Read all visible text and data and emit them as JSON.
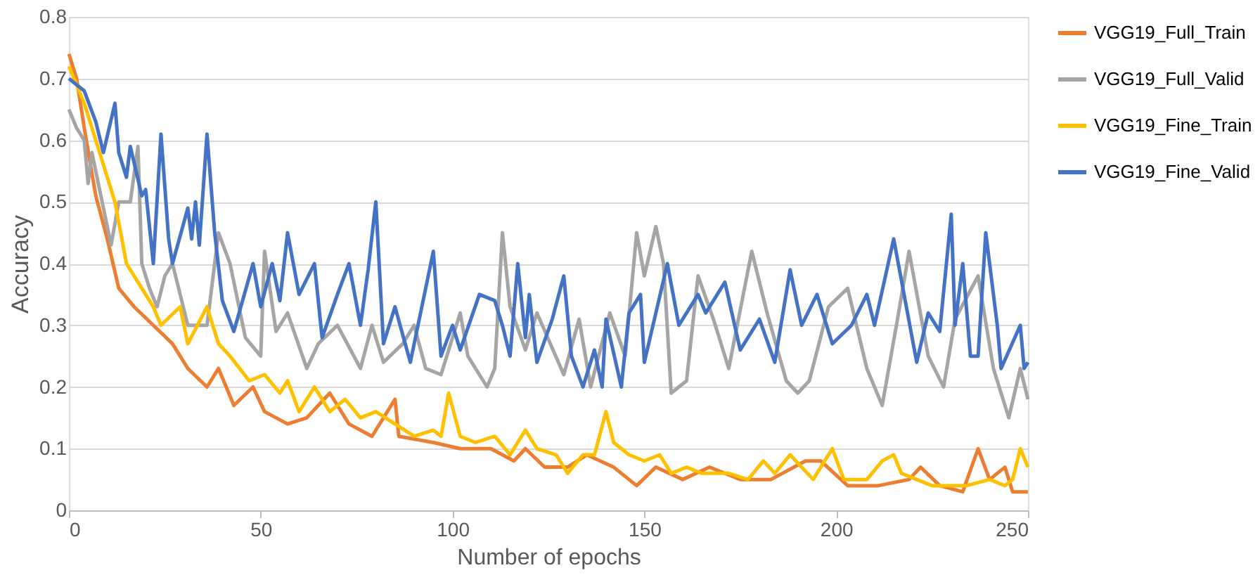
{
  "chart_data": {
    "type": "line",
    "xlabel": "Number of epochs",
    "ylabel": "Accuracy",
    "xlim": [
      0,
      250
    ],
    "xticks": [
      0,
      50,
      100,
      150,
      200,
      250
    ],
    "ylim": [
      0,
      0.8
    ],
    "yticks": [
      0,
      0.1,
      0.2,
      0.3,
      0.4,
      0.5,
      0.6,
      0.7,
      0.8
    ],
    "grid": "y",
    "legend": "right",
    "marker": "none",
    "line_style": "solid",
    "series": [
      {
        "name": "VGG19_Full_Train",
        "color": "#ed7d31",
        "x": [
          0,
          2,
          4,
          7,
          10,
          13,
          17,
          22,
          27,
          31,
          36,
          39,
          43,
          48,
          51,
          57,
          62,
          68,
          73,
          79,
          85,
          86,
          95,
          102,
          110,
          116,
          119,
          124,
          130,
          135,
          142,
          148,
          153,
          160,
          167,
          175,
          183,
          192,
          196,
          203,
          211,
          219,
          222,
          227,
          233,
          237,
          240,
          244,
          246,
          250
        ],
        "values": [
          0.74,
          0.7,
          0.62,
          0.51,
          0.44,
          0.36,
          0.33,
          0.3,
          0.27,
          0.23,
          0.2,
          0.23,
          0.17,
          0.2,
          0.16,
          0.14,
          0.15,
          0.19,
          0.14,
          0.12,
          0.18,
          0.12,
          0.11,
          0.1,
          0.1,
          0.08,
          0.1,
          0.07,
          0.07,
          0.09,
          0.07,
          0.04,
          0.07,
          0.05,
          0.07,
          0.05,
          0.05,
          0.08,
          0.08,
          0.04,
          0.04,
          0.05,
          0.07,
          0.04,
          0.03,
          0.1,
          0.05,
          0.07,
          0.03,
          0.03
        ]
      },
      {
        "name": "VGG19_Full_Valid",
        "color": "#a5a5a5",
        "x": [
          0,
          2,
          4,
          5,
          6,
          11,
          13,
          16,
          18,
          19,
          21,
          23,
          25,
          27,
          31,
          36,
          39,
          42,
          46,
          50,
          51,
          54,
          57,
          62,
          65,
          70,
          76,
          79,
          82,
          87,
          90,
          93,
          97,
          102,
          104,
          109,
          111,
          113,
          115,
          119,
          122,
          129,
          133,
          136,
          141,
          145,
          148,
          150,
          153,
          155,
          157,
          161,
          164,
          168,
          172,
          178,
          182,
          187,
          190,
          193,
          198,
          203,
          208,
          212,
          216,
          219,
          224,
          228,
          231,
          237,
          241,
          245,
          248,
          250
        ],
        "values": [
          0.65,
          0.62,
          0.6,
          0.53,
          0.58,
          0.43,
          0.5,
          0.5,
          0.59,
          0.4,
          0.36,
          0.33,
          0.38,
          0.4,
          0.3,
          0.3,
          0.45,
          0.4,
          0.28,
          0.25,
          0.42,
          0.29,
          0.32,
          0.23,
          0.27,
          0.3,
          0.23,
          0.3,
          0.24,
          0.27,
          0.3,
          0.23,
          0.22,
          0.32,
          0.25,
          0.2,
          0.23,
          0.45,
          0.33,
          0.26,
          0.32,
          0.22,
          0.31,
          0.2,
          0.32,
          0.25,
          0.45,
          0.38,
          0.46,
          0.4,
          0.19,
          0.21,
          0.38,
          0.31,
          0.23,
          0.42,
          0.32,
          0.21,
          0.19,
          0.21,
          0.33,
          0.36,
          0.23,
          0.17,
          0.31,
          0.42,
          0.25,
          0.2,
          0.31,
          0.38,
          0.23,
          0.15,
          0.23,
          0.18
        ]
      },
      {
        "name": "VGG19_Fine_Train",
        "color": "#ffc000",
        "x": [
          0,
          4,
          8,
          12,
          15,
          18,
          22,
          24,
          29,
          31,
          36,
          39,
          42,
          47,
          51,
          55,
          57,
          60,
          64,
          68,
          72,
          76,
          80,
          85,
          90,
          95,
          97,
          99,
          102,
          106,
          111,
          115,
          119,
          122,
          127,
          130,
          134,
          137,
          140,
          142,
          146,
          150,
          154,
          157,
          161,
          165,
          172,
          177,
          181,
          184,
          188,
          194,
          199,
          202,
          208,
          212,
          215,
          217,
          225,
          234,
          240,
          244,
          246,
          248,
          250
        ],
        "values": [
          0.72,
          0.66,
          0.58,
          0.5,
          0.4,
          0.37,
          0.33,
          0.3,
          0.33,
          0.27,
          0.33,
          0.27,
          0.25,
          0.21,
          0.22,
          0.19,
          0.21,
          0.16,
          0.2,
          0.16,
          0.18,
          0.15,
          0.16,
          0.14,
          0.12,
          0.13,
          0.12,
          0.19,
          0.12,
          0.11,
          0.12,
          0.09,
          0.13,
          0.1,
          0.09,
          0.06,
          0.09,
          0.09,
          0.16,
          0.11,
          0.09,
          0.08,
          0.09,
          0.06,
          0.07,
          0.06,
          0.06,
          0.05,
          0.08,
          0.06,
          0.09,
          0.05,
          0.1,
          0.05,
          0.05,
          0.08,
          0.09,
          0.06,
          0.04,
          0.04,
          0.05,
          0.04,
          0.05,
          0.1,
          0.07
        ]
      },
      {
        "name": "VGG19_Fine_Valid",
        "color": "#4472c4",
        "x": [
          0,
          4,
          7,
          9,
          12,
          13,
          15,
          16,
          19,
          20,
          22,
          24,
          26,
          27,
          31,
          32,
          33,
          34,
          36,
          38,
          40,
          43,
          48,
          50,
          53,
          55,
          57,
          60,
          64,
          66,
          70,
          73,
          76,
          78,
          80,
          82,
          85,
          89,
          95,
          97,
          100,
          102,
          107,
          111,
          113,
          115,
          117,
          119,
          120,
          122,
          126,
          129,
          131,
          134,
          137,
          139,
          140,
          144,
          146,
          149,
          150,
          156,
          159,
          164,
          166,
          171,
          175,
          180,
          184,
          188,
          191,
          195,
          199,
          204,
          208,
          210,
          215,
          221,
          224,
          227,
          230,
          231,
          233,
          235,
          237,
          239,
          242,
          243,
          248,
          249,
          250
        ],
        "values": [
          0.7,
          0.68,
          0.63,
          0.58,
          0.66,
          0.58,
          0.54,
          0.59,
          0.51,
          0.52,
          0.4,
          0.61,
          0.44,
          0.4,
          0.49,
          0.44,
          0.5,
          0.43,
          0.61,
          0.45,
          0.34,
          0.29,
          0.4,
          0.33,
          0.4,
          0.34,
          0.45,
          0.35,
          0.4,
          0.28,
          0.35,
          0.4,
          0.3,
          0.39,
          0.5,
          0.27,
          0.33,
          0.24,
          0.42,
          0.25,
          0.3,
          0.26,
          0.35,
          0.34,
          0.3,
          0.25,
          0.4,
          0.28,
          0.35,
          0.24,
          0.31,
          0.38,
          0.25,
          0.2,
          0.26,
          0.2,
          0.31,
          0.2,
          0.32,
          0.35,
          0.24,
          0.4,
          0.3,
          0.35,
          0.32,
          0.37,
          0.26,
          0.31,
          0.24,
          0.39,
          0.3,
          0.35,
          0.27,
          0.3,
          0.35,
          0.3,
          0.44,
          0.24,
          0.32,
          0.29,
          0.48,
          0.3,
          0.4,
          0.25,
          0.25,
          0.45,
          0.3,
          0.23,
          0.3,
          0.23,
          0.24
        ]
      }
    ]
  }
}
